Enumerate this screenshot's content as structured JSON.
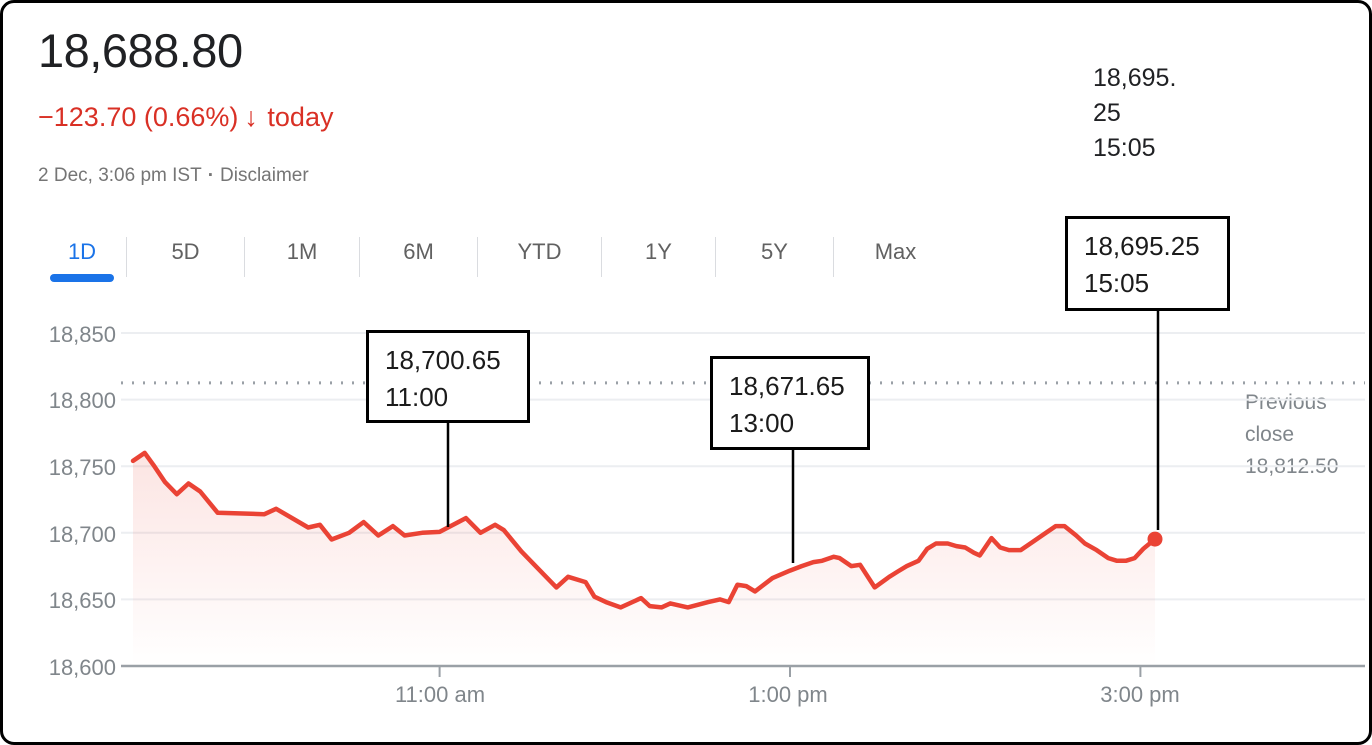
{
  "header": {
    "price": "18,688.80",
    "change": "−123.70 (0.66%)",
    "change_arrow": "↓",
    "change_suffix": "today",
    "timestamp": "2 Dec, 3:06 pm IST",
    "separator": "·",
    "disclaimer": "Disclaimer"
  },
  "hover_readout": {
    "line1": "18,695.",
    "line2": "25",
    "line3": "15:05"
  },
  "tabs": [
    {
      "label": "1D",
      "active": true
    },
    {
      "label": "5D",
      "active": false
    },
    {
      "label": "1M",
      "active": false
    },
    {
      "label": "6M",
      "active": false
    },
    {
      "label": "YTD",
      "active": false
    },
    {
      "label": "1Y",
      "active": false
    },
    {
      "label": "5Y",
      "active": false
    },
    {
      "label": "Max",
      "active": false
    }
  ],
  "chart_data": {
    "type": "line",
    "title": "Intraday price, 1 day",
    "x_axis": {
      "t_start": 0,
      "t_end": 350,
      "unit": "minutes from session open 9:15 am",
      "ticks": [
        {
          "label": "11:00 am",
          "t": 105
        },
        {
          "label": "1:00 pm",
          "t": 225
        },
        {
          "label": "3:00 pm",
          "t": 345
        }
      ]
    },
    "y_axis": {
      "min": 18600,
      "max": 18850,
      "ticks": [
        18850,
        18800,
        18750,
        18700,
        18650,
        18600
      ],
      "labels": [
        "18,850",
        "18,800",
        "18,750",
        "18,700",
        "18,650",
        "18,600"
      ]
    },
    "previous_close": {
      "label": "Previous close 18,812.50",
      "value": 18812.5
    },
    "series": [
      {
        "name": "price",
        "points": [
          [
            0,
            18754
          ],
          [
            4,
            18760
          ],
          [
            7,
            18751
          ],
          [
            11,
            18738
          ],
          [
            15,
            18729
          ],
          [
            19,
            18737
          ],
          [
            23,
            18731
          ],
          [
            29,
            18715
          ],
          [
            45,
            18714
          ],
          [
            49,
            18718
          ],
          [
            60,
            18704
          ],
          [
            64,
            18706
          ],
          [
            68,
            18695
          ],
          [
            74,
            18700
          ],
          [
            79,
            18708
          ],
          [
            84,
            18698
          ],
          [
            89,
            18705
          ],
          [
            93,
            18698
          ],
          [
            99,
            18700
          ],
          [
            105,
            18700.65
          ],
          [
            114,
            18711
          ],
          [
            119,
            18700
          ],
          [
            124,
            18706
          ],
          [
            127,
            18702
          ],
          [
            133,
            18686
          ],
          [
            141,
            18668
          ],
          [
            145,
            18659
          ],
          [
            149,
            18667
          ],
          [
            155,
            18663
          ],
          [
            158,
            18652
          ],
          [
            162,
            18648
          ],
          [
            167,
            18644
          ],
          [
            174,
            18651
          ],
          [
            177,
            18645
          ],
          [
            181,
            18644
          ],
          [
            184,
            18647
          ],
          [
            190,
            18644
          ],
          [
            197,
            18648
          ],
          [
            201,
            18650
          ],
          [
            204,
            18648
          ],
          [
            207,
            18661
          ],
          [
            210,
            18660
          ],
          [
            213,
            18656
          ],
          [
            219,
            18666
          ],
          [
            225,
            18671.65
          ],
          [
            229,
            18675
          ],
          [
            233,
            18678
          ],
          [
            236,
            18679
          ],
          [
            240,
            18682
          ],
          [
            242,
            18681
          ],
          [
            246,
            18675
          ],
          [
            249,
            18676
          ],
          [
            254,
            18659
          ],
          [
            259,
            18667
          ],
          [
            262,
            18671
          ],
          [
            265,
            18675
          ],
          [
            269,
            18679
          ],
          [
            272,
            18688
          ],
          [
            275,
            18692
          ],
          [
            279,
            18692
          ],
          [
            282,
            18690
          ],
          [
            285,
            18689
          ],
          [
            288,
            18685
          ],
          [
            290,
            18683
          ],
          [
            294,
            18696
          ],
          [
            297,
            18689
          ],
          [
            300,
            18687
          ],
          [
            304,
            18687
          ],
          [
            308,
            18693
          ],
          [
            312,
            18699
          ],
          [
            316,
            18705
          ],
          [
            319,
            18705
          ],
          [
            323,
            18698
          ],
          [
            326,
            18692
          ],
          [
            330,
            18687
          ],
          [
            334,
            18681
          ],
          [
            337,
            18679
          ],
          [
            340,
            18679
          ],
          [
            343,
            18681
          ],
          [
            346,
            18688
          ],
          [
            350,
            18695.25
          ]
        ]
      }
    ],
    "annotations": [
      {
        "value_label": "18,700.65",
        "time_label": "11:00",
        "t": 105,
        "value": 18700.65
      },
      {
        "value_label": "18,671.65",
        "time_label": "13:00",
        "t": 225,
        "value": 18671.65
      },
      {
        "value_label": "18,695.25",
        "time_label": "15:05",
        "t": 350,
        "value": 18695.25
      }
    ],
    "end_point": {
      "t": 350,
      "value": 18695.25
    },
    "colors": {
      "line": "#ea4335",
      "fill": "rgba(234,67,53,0.14)",
      "accent_blue": "#1a73e8",
      "change_red": "#d93025",
      "axis_text": "#80868b",
      "grid": "#eceef1",
      "axis_line": "#9aa0a6",
      "annotation_border": "#000000"
    },
    "legend": "none",
    "grid": "horizontal-only"
  }
}
